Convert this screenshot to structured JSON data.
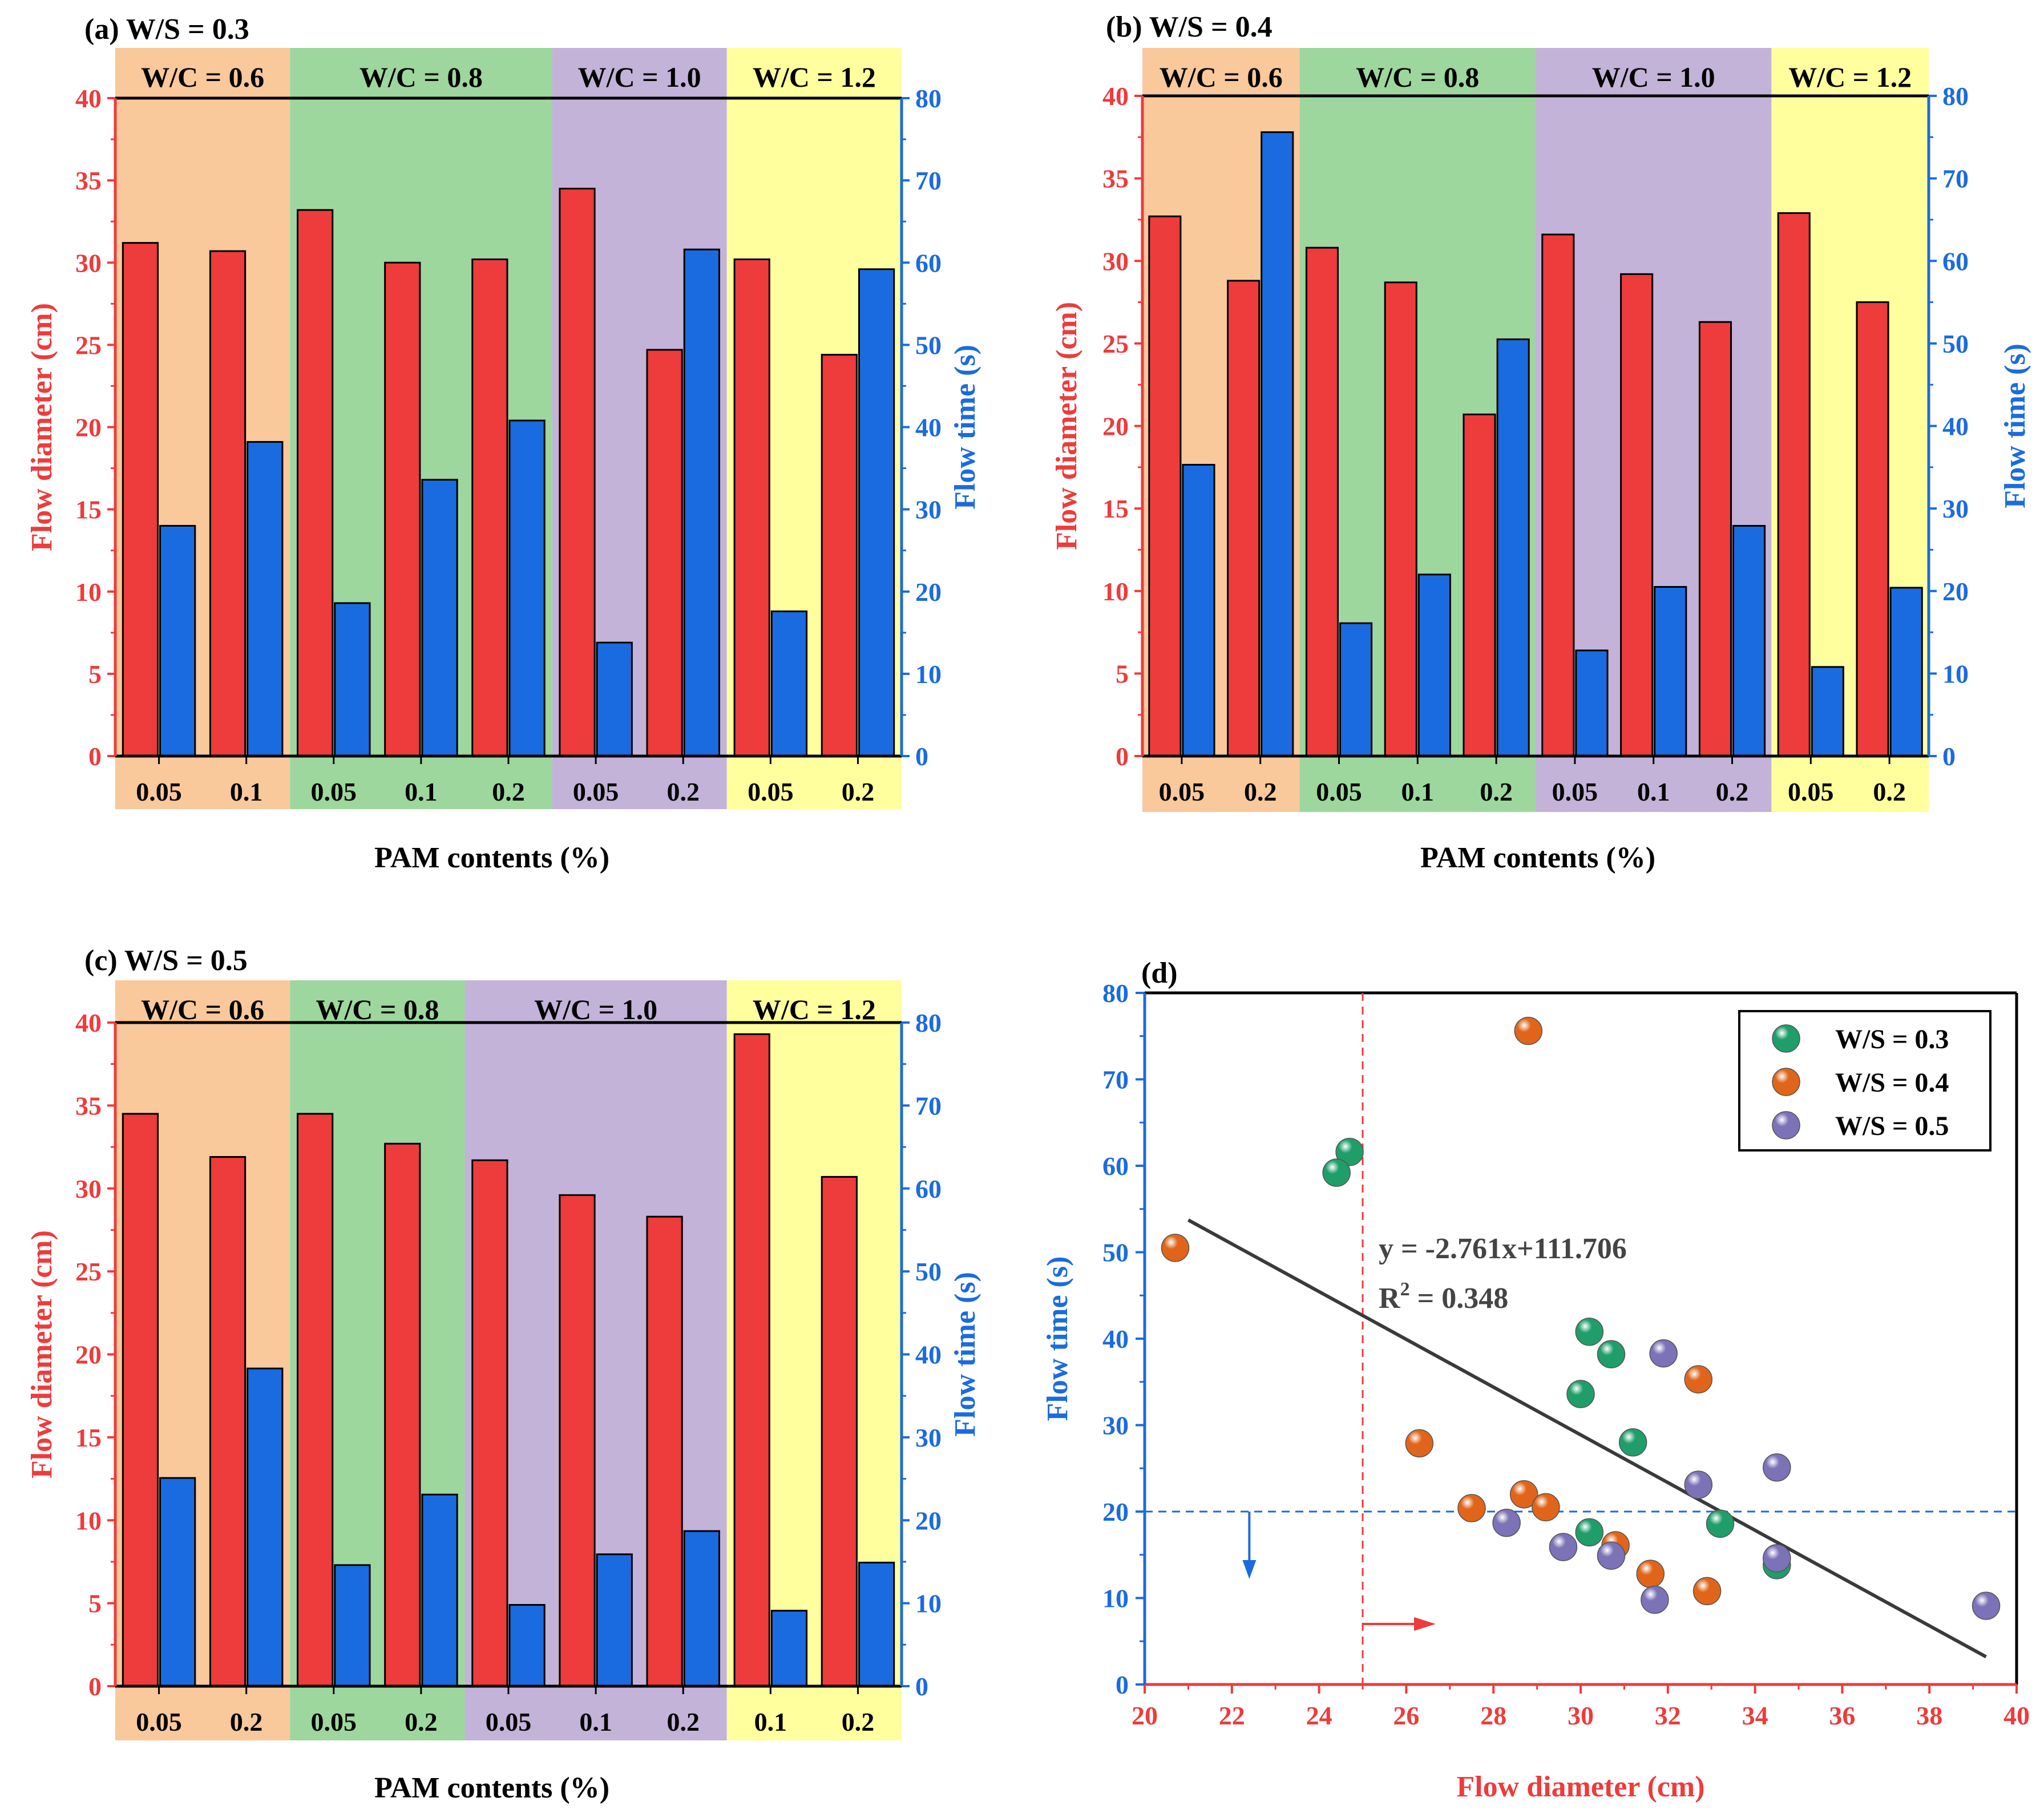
{
  "colors": {
    "diameter": "#EE3B3B",
    "time": "#1B6BE0",
    "band_06": "#F9C89B",
    "band_08": "#9DD79D",
    "band_10": "#C3B3D8",
    "band_12": "#FFFF9E",
    "ws03": "#1F9E6A",
    "ws04": "#E0651A",
    "ws05": "#7B72B8",
    "fit": "#3A3A3A"
  },
  "shared": {
    "xlabel": "PAM contents (%)",
    "left_ylabel": "Flow diameter (cm)",
    "right_ylabel": "Flow time (s)",
    "left_ticks": [
      "0",
      "5",
      "10",
      "15",
      "20",
      "25",
      "30",
      "35",
      "40"
    ],
    "right_ticks": [
      "0",
      "10",
      "20",
      "30",
      "40",
      "50",
      "60",
      "70",
      "80"
    ]
  },
  "chart_data": [
    {
      "type": "bar",
      "panel": "a",
      "title": "(a) W/S = 0.3",
      "xlabel": "PAM contents (%)",
      "ylabel": "Flow diameter (cm)",
      "y2label": "Flow time (s)",
      "ylim": [
        0,
        40
      ],
      "y2lim": [
        0,
        80
      ],
      "groups": [
        {
          "label": "W/C = 0.6",
          "color_key": "band_06",
          "count": 2
        },
        {
          "label": "W/C = 0.8",
          "color_key": "band_08",
          "count": 3
        },
        {
          "label": "W/C = 1.0",
          "color_key": "band_10",
          "count": 2
        },
        {
          "label": "W/C = 1.2",
          "color_key": "band_12",
          "count": 2
        }
      ],
      "categories": [
        "0.05",
        "0.1",
        "0.05",
        "0.1",
        "0.2",
        "0.05",
        "0.2",
        "0.05",
        "0.2"
      ],
      "series": [
        {
          "name": "Flow diameter (cm)",
          "axis": "left",
          "values": [
            31.2,
            30.7,
            33.2,
            30.0,
            30.2,
            34.5,
            24.7,
            30.2,
            24.4
          ]
        },
        {
          "name": "Flow time (s)",
          "axis": "right",
          "values": [
            28.0,
            38.2,
            18.6,
            33.6,
            40.8,
            13.8,
            61.6,
            17.6,
            59.2
          ]
        }
      ]
    },
    {
      "type": "bar",
      "panel": "b",
      "title": "(b) W/S = 0.4",
      "xlabel": "PAM contents (%)",
      "ylabel": "Flow diameter (cm)",
      "y2label": "Flow time (s)",
      "ylim": [
        0,
        40
      ],
      "y2lim": [
        0,
        80
      ],
      "groups": [
        {
          "label": "W/C = 0.6",
          "color_key": "band_06",
          "count": 2
        },
        {
          "label": "W/C = 0.8",
          "color_key": "band_08",
          "count": 3
        },
        {
          "label": "W/C = 1.0",
          "color_key": "band_10",
          "count": 3
        },
        {
          "label": "W/C = 1.2",
          "color_key": "band_12",
          "count": 2
        }
      ],
      "categories": [
        "0.05",
        "0.2",
        "0.05",
        "0.1",
        "0.2",
        "0.05",
        "0.1",
        "0.2",
        "0.05",
        "0.2"
      ],
      "series": [
        {
          "name": "Flow diameter (cm)",
          "axis": "left",
          "values": [
            32.7,
            28.8,
            30.8,
            28.7,
            20.7,
            31.6,
            29.2,
            26.3,
            32.9,
            27.5
          ]
        },
        {
          "name": "Flow time (s)",
          "axis": "right",
          "values": [
            35.3,
            75.6,
            16.1,
            22.0,
            50.5,
            12.8,
            20.5,
            27.9,
            10.8,
            20.4
          ]
        }
      ]
    },
    {
      "type": "bar",
      "panel": "c",
      "title": "(c) W/S = 0.5",
      "xlabel": "PAM contents (%)",
      "ylabel": "Flow diameter (cm)",
      "y2label": "Flow time (s)",
      "ylim": [
        0,
        40
      ],
      "y2lim": [
        0,
        80
      ],
      "groups": [
        {
          "label": "W/C = 0.6",
          "color_key": "band_06",
          "count": 2
        },
        {
          "label": "W/C = 0.8",
          "color_key": "band_08",
          "count": 2
        },
        {
          "label": "W/C = 1.0",
          "color_key": "band_10",
          "count": 3
        },
        {
          "label": "W/C = 1.2",
          "color_key": "band_12",
          "count": 2
        }
      ],
      "categories": [
        "0.05",
        "0.2",
        "0.05",
        "0.2",
        "0.05",
        "0.1",
        "0.2",
        "0.1",
        "0.2"
      ],
      "series": [
        {
          "name": "Flow diameter (cm)",
          "axis": "left",
          "values": [
            34.5,
            31.9,
            34.5,
            32.7,
            31.7,
            29.6,
            28.3,
            39.3,
            30.7
          ]
        },
        {
          "name": "Flow time (s)",
          "axis": "right",
          "values": [
            25.1,
            38.3,
            14.6,
            23.1,
            9.8,
            15.9,
            18.7,
            9.1,
            14.9
          ]
        }
      ]
    },
    {
      "type": "scatter",
      "panel": "d",
      "title": "(d)",
      "xlabel": "Flow diameter (cm)",
      "ylabel": "Flow time (s)",
      "xlim": [
        20,
        40
      ],
      "ylim": [
        0,
        80
      ],
      "xticks": [
        "20",
        "22",
        "24",
        "26",
        "28",
        "30",
        "32",
        "34",
        "36",
        "38",
        "40"
      ],
      "yticks": [
        "0",
        "10",
        "20",
        "30",
        "40",
        "50",
        "60",
        "70",
        "80"
      ],
      "series": [
        {
          "name": "W/S = 0.3",
          "color_key": "ws03",
          "x": [
            31.2,
            30.7,
            33.2,
            30.0,
            30.2,
            34.5,
            24.7,
            30.2,
            24.4
          ],
          "y": [
            28.0,
            38.2,
            18.6,
            33.6,
            40.8,
            13.8,
            61.6,
            17.6,
            59.2
          ]
        },
        {
          "name": "W/S = 0.4",
          "color_key": "ws04",
          "x": [
            32.7,
            28.8,
            30.8,
            28.7,
            20.7,
            31.6,
            29.2,
            26.3,
            32.9,
            27.5
          ],
          "y": [
            35.3,
            75.6,
            16.1,
            22.0,
            50.5,
            12.8,
            20.5,
            27.9,
            10.8,
            20.4
          ]
        },
        {
          "name": "W/S = 0.5",
          "color_key": "ws05",
          "x": [
            34.5,
            31.9,
            34.5,
            32.7,
            31.7,
            29.6,
            28.3,
            39.3,
            30.7
          ],
          "y": [
            25.1,
            38.3,
            14.6,
            23.1,
            9.8,
            15.9,
            18.7,
            9.1,
            14.9
          ]
        }
      ],
      "fit": {
        "slope": -2.761,
        "intercept": 111.706,
        "x_range": [
          21.0,
          39.3
        ],
        "equation": "y = -2.761x+111.706",
        "r2_prefix": "R",
        "r2_sup": "2",
        "r2_value": " = 0.348"
      },
      "reference_lines": {
        "x": 25,
        "y": 20
      },
      "legend": "top-right"
    }
  ]
}
